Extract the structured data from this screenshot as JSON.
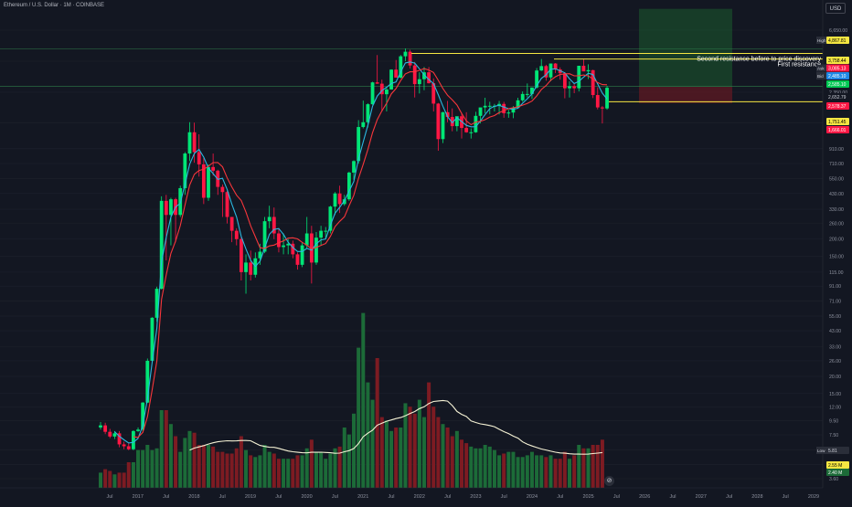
{
  "header": {
    "title": "Ethereum / U.S. Dollar · 1M · COINBASE",
    "currency": "USD"
  },
  "logo_text": "⊘",
  "colors": {
    "background": "#131722",
    "up": "#00e676",
    "down": "#ff1744",
    "fast_ma": "#2bb8e0",
    "slow_ma": "#f7363b",
    "volume_ma": "#f5f2d5",
    "annotation": "#f5e642",
    "grid": "#1e222d"
  },
  "chart_data": {
    "type": "candlestick",
    "symbol": "ETHUSD",
    "interval": "1M",
    "y_scale": "log",
    "y_ticks": [
      "6,650.00",
      "3,950.00",
      "2,350.00",
      "1,400.00",
      "910.00",
      "710.00",
      "550.00",
      "430.00",
      "330.00",
      "260.00",
      "200.00",
      "150.00",
      "115.00",
      "91.00",
      "71.00",
      "55.00",
      "43.00",
      "33.00",
      "26.00",
      "20.00",
      "15.00",
      "12.00",
      "9.50",
      "7.50",
      "5.85",
      "4.55",
      "3.60"
    ],
    "x_labels": [
      "Jul",
      "2017",
      "Jul",
      "2018",
      "Jul",
      "2019",
      "Jul",
      "2020",
      "Jul",
      "2021",
      "Jul",
      "2022",
      "Jul",
      "2023",
      "Jul",
      "2024",
      "Jul",
      "2025",
      "Jul",
      "2026",
      "Jul",
      "2027",
      "Jul",
      "2028",
      "Jul",
      "2029"
    ],
    "candles_ohlc": [
      [
        8.5,
        9.3,
        8.2,
        8.8
      ],
      [
        8.8,
        9.2,
        7.6,
        7.9
      ],
      [
        7.9,
        8.3,
        7.1,
        7.3
      ],
      [
        7.3,
        8.0,
        7.0,
        7.7
      ],
      [
        7.7,
        8.0,
        6.1,
        6.4
      ],
      [
        6.4,
        6.7,
        5.9,
        6.2
      ],
      [
        6.2,
        6.5,
        5.8,
        5.9
      ],
      [
        5.9,
        8.1,
        5.8,
        8.0
      ],
      [
        8.0,
        8.5,
        7.9,
        8.2
      ],
      [
        8.2,
        13.0,
        8.0,
        12.9
      ],
      [
        12.9,
        27.0,
        12.8,
        26.0
      ],
      [
        26.0,
        54.0,
        25.5,
        53.5
      ],
      [
        53.5,
        90.0,
        50.0,
        87.0
      ],
      [
        87.0,
        410.0,
        86.0,
        380.0
      ],
      [
        380.0,
        420.0,
        140.0,
        300.0
      ],
      [
        300.0,
        400.0,
        180.0,
        390.0
      ],
      [
        390.0,
        400.0,
        190.0,
        300.0
      ],
      [
        300.0,
        490.0,
        290.0,
        470.0
      ],
      [
        470.0,
        860.0,
        420.0,
        840.0
      ],
      [
        840.0,
        1420.0,
        740.0,
        1200.0
      ],
      [
        1200.0,
        1410.0,
        720.0,
        860.0
      ],
      [
        860.0,
        1160.0,
        570.0,
        700.0
      ],
      [
        700.0,
        780.0,
        360.0,
        400.0
      ],
      [
        400.0,
        700.0,
        380.0,
        670.0
      ],
      [
        670.0,
        840.0,
        580.0,
        630.0
      ],
      [
        630.0,
        640.0,
        420.0,
        480.0
      ],
      [
        480.0,
        500.0,
        290.0,
        440.0
      ],
      [
        440.0,
        450.0,
        260.0,
        290.0
      ],
      [
        290.0,
        290.0,
        190.0,
        230.0
      ],
      [
        230.0,
        240.0,
        180.0,
        200.0
      ],
      [
        200.0,
        210.0,
        100.0,
        115.0
      ],
      [
        115.0,
        155.0,
        80.0,
        135.0
      ],
      [
        135.0,
        165.0,
        100.0,
        110.0
      ],
      [
        110.0,
        160.0,
        105.0,
        145.0
      ],
      [
        145.0,
        185.0,
        130.0,
        162.0
      ],
      [
        162.0,
        290.0,
        158.0,
        270.0
      ],
      [
        270.0,
        350.0,
        240.0,
        290.0
      ],
      [
        290.0,
        340.0,
        200.0,
        220.0
      ],
      [
        220.0,
        240.0,
        160.0,
        175.0
      ],
      [
        175.0,
        220.0,
        155.0,
        180.0
      ],
      [
        180.0,
        200.0,
        155.0,
        185.0
      ],
      [
        185.0,
        195.0,
        145.0,
        155.0
      ],
      [
        155.0,
        160.0,
        120.0,
        130.0
      ],
      [
        130.0,
        190.0,
        125.0,
        180.0
      ],
      [
        180.0,
        290.0,
        170.0,
        220.0
      ],
      [
        220.0,
        250.0,
        95.0,
        135.0
      ],
      [
        135.0,
        225.0,
        130.0,
        205.0
      ],
      [
        205.0,
        250.0,
        180.0,
        230.0
      ],
      [
        230.0,
        245.0,
        200.0,
        230.0
      ],
      [
        230.0,
        350.0,
        220.0,
        345.0
      ],
      [
        345.0,
        440.0,
        300.0,
        430.0
      ],
      [
        430.0,
        490.0,
        310.0,
        360.0
      ],
      [
        360.0,
        420.0,
        350.0,
        390.0
      ],
      [
        390.0,
        620.0,
        380.0,
        610.0
      ],
      [
        610.0,
        750.0,
        540.0,
        740.0
      ],
      [
        740.0,
        1470.0,
        710.0,
        1310.0
      ],
      [
        1310.0,
        2040.0,
        1280.0,
        1420.0
      ],
      [
        1420.0,
        1950.0,
        1300.0,
        1920.0
      ],
      [
        1920.0,
        2800.0,
        1900.0,
        2770.0
      ],
      [
        2770.0,
        4380.0,
        2700.0,
        2710.0
      ],
      [
        2710.0,
        2900.0,
        1700.0,
        2270.0
      ],
      [
        2270.0,
        2550.0,
        1700.0,
        2460.0
      ],
      [
        2460.0,
        3450.0,
        2450.0,
        3430.0
      ],
      [
        3430.0,
        4030.0,
        3160.0,
        3000.0
      ],
      [
        3000.0,
        4380.0,
        2960.0,
        4290.0
      ],
      [
        4290.0,
        4890.0,
        3950.0,
        4630.0
      ],
      [
        4630.0,
        4780.0,
        3500.0,
        3680.0
      ],
      [
        3680.0,
        3900.0,
        2150.0,
        2690.0
      ],
      [
        2690.0,
        3280.0,
        2300.0,
        2920.0
      ],
      [
        2920.0,
        3580.0,
        2430.0,
        3280.0
      ],
      [
        3280.0,
        3580.0,
        2720.0,
        2730.0
      ],
      [
        2730.0,
        2960.0,
        1700.0,
        1940.0
      ],
      [
        1940.0,
        1960.0,
        880.0,
        1070.0
      ],
      [
        1070.0,
        1690.0,
        1000.0,
        1680.0
      ],
      [
        1680.0,
        2030.0,
        1420.0,
        1550.0
      ],
      [
        1550.0,
        1790.0,
        1220.0,
        1330.0
      ],
      [
        1330.0,
        1400.0,
        1220.0,
        1570.0
      ],
      [
        1570.0,
        1660.0,
        1080.0,
        1290.0
      ],
      [
        1290.0,
        1680.0,
        1190.0,
        1200.0
      ],
      [
        1200.0,
        1280.0,
        1080.0,
        1200.0
      ],
      [
        1200.0,
        1690.0,
        1190.0,
        1580.0
      ],
      [
        1580.0,
        1750.0,
        1390.0,
        1820.0
      ],
      [
        1820.0,
        2140.0,
        1650.0,
        1870.0
      ],
      [
        1870.0,
        2000.0,
        1620.0,
        1870.0
      ],
      [
        1870.0,
        1930.0,
        1700.0,
        1870.0
      ],
      [
        1870.0,
        2030.0,
        1620.0,
        1930.0
      ],
      [
        1930.0,
        2000.0,
        1530.0,
        1650.0
      ],
      [
        1650.0,
        1750.0,
        1530.0,
        1670.0
      ],
      [
        1670.0,
        1860.0,
        1520.0,
        1810.0
      ],
      [
        1810.0,
        2140.0,
        1780.0,
        2050.0
      ],
      [
        2050.0,
        2380.0,
        2000.0,
        2280.0
      ],
      [
        2280.0,
        2720.0,
        2150.0,
        2280.0
      ],
      [
        2280.0,
        2540.0,
        2100.0,
        2540.0
      ],
      [
        2540.0,
        3520.0,
        2500.0,
        3380.0
      ],
      [
        3380.0,
        4100.0,
        3350.0,
        3640.0
      ],
      [
        3640.0,
        3720.0,
        2850.0,
        3010.0
      ],
      [
        3010.0,
        3140.0,
        2820.0,
        3800.0
      ],
      [
        3800.0,
        3830.0,
        3240.0,
        3440.0
      ],
      [
        3440.0,
        3560.0,
        2900.0,
        3230.0
      ],
      [
        3230.0,
        3290.0,
        2120.0,
        2510.0
      ],
      [
        2510.0,
        2820.0,
        2150.0,
        2600.0
      ],
      [
        2600.0,
        2730.0,
        2310.0,
        2510.0
      ],
      [
        2510.0,
        3640.0,
        2380.0,
        3660.0
      ],
      [
        3660.0,
        4110.0,
        3390.0,
        3330.0
      ],
      [
        3330.0,
        3750.0,
        2930.0,
        3400.0
      ],
      [
        3400.0,
        3420.0,
        2130.0,
        2240.0
      ],
      [
        2240.0,
        2550.0,
        1760.0,
        1820.0
      ],
      [
        1820.0,
        1860.0,
        1390.0,
        1790.0
      ],
      [
        1790.0,
        2610.0,
        1750.0,
        2530.0
      ]
    ],
    "volume": [
      3.9,
      4.0,
      3.95,
      3.85,
      3.9,
      3.9,
      4.2,
      4.2,
      4.55,
      4.55,
      4.7,
      4.55,
      4.6,
      5.7,
      5.7,
      5.3,
      4.95,
      4.5,
      4.9,
      5.1,
      5.05,
      4.7,
      4.7,
      4.7,
      4.65,
      4.5,
      4.5,
      4.45,
      4.45,
      4.6,
      4.95,
      4.55,
      4.4,
      4.35,
      4.4,
      4.7,
      4.5,
      4.45,
      4.3,
      4.3,
      4.3,
      4.3,
      4.4,
      4.4,
      4.6,
      4.85,
      4.5,
      4.5,
      4.3,
      4.45,
      4.6,
      4.65,
      5.2,
      5.0,
      5.6,
      7.5,
      8.5,
      6.5,
      6.0,
      7.2,
      5.5,
      5.4,
      5.1,
      5.2,
      5.2,
      5.9,
      5.8,
      5.6,
      6.0,
      5.5,
      6.5,
      5.8,
      5.5,
      5.3,
      5.2,
      4.95,
      5.1,
      4.85,
      4.75,
      4.65,
      4.6,
      4.6,
      4.7,
      4.65,
      4.55,
      4.4,
      4.45,
      4.5,
      4.5,
      4.35,
      4.35,
      4.4,
      4.5,
      4.4,
      4.4,
      4.35,
      4.4,
      4.3,
      4.3,
      4.5,
      4.3,
      4.4,
      4.7,
      4.6,
      4.6,
      4.7,
      4.7,
      4.85
    ],
    "series": [
      {
        "name": "",
        "type": "ma"
      },
      {
        "name": "",
        "type": "ma"
      },
      {
        "name": "",
        "type": "volume_ma"
      }
    ],
    "annotations": [
      {
        "label": "Second resistance before to price discovery",
        "price": 4500
      },
      {
        "label": "First resistance",
        "price": 4100
      }
    ],
    "support_level": 2000,
    "high_price": 4867.81,
    "price_badges": [
      {
        "label": "High",
        "value": "4,867.81"
      },
      {
        "label": "",
        "value": "3,758.44"
      },
      {
        "label": "Ask",
        "value": "3,085.13"
      },
      {
        "label": "Bid",
        "value": "2,485.10"
      },
      {
        "label": "",
        "value": "2,585.10"
      },
      {
        "label": "",
        "value": "2,652.79"
      },
      {
        "label": "",
        "value": "2,578.37"
      },
      {
        "label": "",
        "value": "1,751.45"
      },
      {
        "label": "",
        "value": "1,666.01"
      },
      {
        "label": "Low",
        "value": "5.81"
      },
      {
        "label": "",
        "value": "2.55 M"
      },
      {
        "label": "",
        "value": "2.40 M"
      }
    ],
    "position_tool": {
      "profit_top": 9500,
      "entry": 2585,
      "stop": 1950
    },
    "grid": true,
    "legend": "none"
  }
}
